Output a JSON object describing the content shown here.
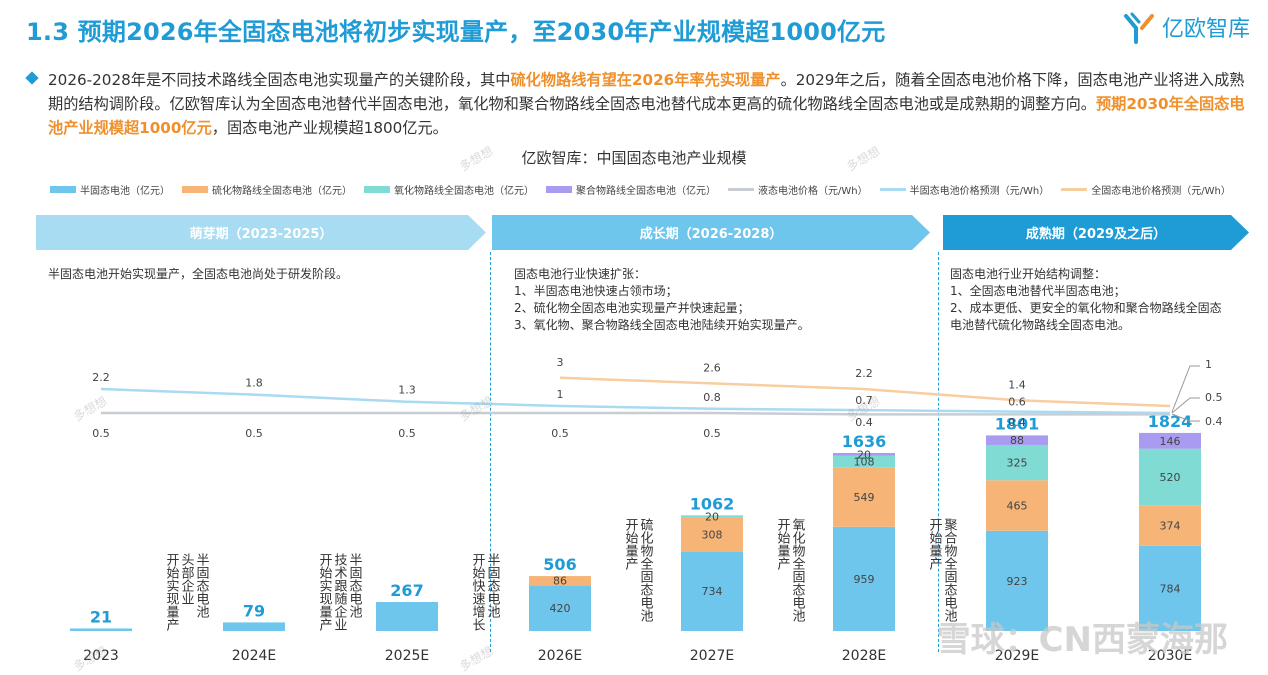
{
  "title": "1.3 预期2026年全固态电池将初步实现量产，至2030年产业规模超1000亿元",
  "logo": {
    "text": "亿欧智库",
    "icon": "yiou-logo-icon"
  },
  "intro": {
    "p1": "2026-2028年是不同技术路线全固态电池实现量产的关键阶段，其中",
    "h1": "硫化物路线有望在2026年率先实现量产",
    "p2": "。2029年之后，随着全固态电池价格下降，固态电池产业将进入成熟期的结构调阶段。亿欧智库认为全固态电池替代半固态电池，氧化物和聚合物路线全固态电池替代成本更高的硫化物路线全固态电池或是成熟期的调整方向。",
    "h2": "预期2030年全固态电池产业规模超1000亿元",
    "p3": "，固态电池产业规模超1800亿元。"
  },
  "phases": [
    {
      "label": "萌芽期（2023-2025）",
      "desc": [
        "半固态电池开始实现量产，全固态电池尚处于研发阶段。"
      ]
    },
    {
      "label": "成长期（2026-2028）",
      "desc": [
        "固态电池行业快速扩张：",
        "1、半固态电池快速占领市场；",
        "2、硫化物全固态电池实现量产并快速起量；",
        "3、氧化物、聚合物路线全固态电池陆续开始实现量产。"
      ]
    },
    {
      "label": "成熟期（2029及之后）",
      "desc": [
        "固态电池行业开始结构调整：",
        "1、全固态电池替代半固态电池；",
        "2、成本更低、更安全的氧化物和聚合物路线全固态",
        "电池替代硫化物路线全固态电池。"
      ]
    }
  ],
  "annotations": [
    {
      "after": 0,
      "cols": [
        "半固态电池",
        "头部企业",
        "开始实现量产"
      ]
    },
    {
      "after": 1,
      "cols": [
        "半固态电池",
        "技术跟随企业",
        "开始实现量产"
      ]
    },
    {
      "after": 2,
      "cols": [
        "半固态电池",
        "开始快速增长"
      ]
    },
    {
      "after": 3,
      "cols": [
        "硫化物全固态电池",
        "开始量产"
      ]
    },
    {
      "after": 4,
      "cols": [
        "氧化物全固态电池",
        "开始量产"
      ]
    },
    {
      "after": 5,
      "cols": [
        "聚合物全固态电池",
        "开始量产"
      ]
    }
  ],
  "watermarks": {
    "duoxiang": "多想想",
    "xueqiu": "雪球：CN西蒙海那"
  },
  "colors": {
    "semi": "#6ec6ec",
    "sulfide": "#f6b577",
    "oxide": "#7fdbd3",
    "polymer": "#a99bf0",
    "liquid_price": "#c8cdd3",
    "semi_price": "#a9daf2",
    "all_price": "#f8cda0",
    "phase1": "#a8dcf3",
    "phase2": "#6ec6ec",
    "phase3": "#1f9bd6",
    "accent": "#1f9bd6",
    "total": "#1f9bd6"
  },
  "chart_data": {
    "type": "bar",
    "title": "亿欧智库：中国固态电池产业规模",
    "categories": [
      "2023",
      "2024E",
      "2025E",
      "2026E",
      "2027E",
      "2028E",
      "2029E",
      "2030E"
    ],
    "series": [
      {
        "name": "半固态电池（亿元）",
        "key": "semi",
        "values": [
          21,
          79,
          267,
          420,
          734,
          959,
          923,
          784
        ]
      },
      {
        "name": "硫化物路线全固态电池（亿元）",
        "key": "sulfide",
        "values": [
          0,
          0,
          0,
          86,
          308,
          549,
          465,
          374
        ]
      },
      {
        "name": "氧化物路线全固态电池（亿元）",
        "key": "oxide",
        "values": [
          0,
          0,
          0,
          0,
          20,
          108,
          325,
          520
        ]
      },
      {
        "name": "聚合物路线全固态电池（亿元）",
        "key": "polymer",
        "values": [
          0,
          0,
          0,
          0,
          0,
          20,
          88,
          146
        ]
      }
    ],
    "totals": [
      21,
      79,
      267,
      506,
      1062,
      1636,
      1801,
      1824
    ],
    "seg_labels": [
      [
        "",
        "",
        "",
        ""
      ],
      [
        "",
        "",
        "",
        ""
      ],
      [
        "",
        "",
        "",
        ""
      ],
      [
        "420",
        "86",
        "",
        ""
      ],
      [
        "734",
        "308",
        "20",
        ""
      ],
      [
        "959",
        "549",
        "108",
        "20"
      ],
      [
        "923",
        "465",
        "325",
        "88"
      ],
      [
        "784",
        "374",
        "520",
        "146"
      ]
    ],
    "price_series": [
      {
        "name": "液态电池价格（元/Wh）",
        "key": "liquid_price",
        "values": [
          0.5,
          0.5,
          0.5,
          0.5,
          0.5,
          0.4,
          0.4,
          0.4
        ],
        "labels": [
          "0.5",
          "0.5",
          "0.5",
          "0.5",
          "0.5",
          "0.4",
          "0.4",
          "0.4"
        ]
      },
      {
        "name": "半固态电池价格预测（元/Wh）",
        "key": "semi_price",
        "values": [
          2.2,
          1.8,
          1.3,
          1,
          0.8,
          0.7,
          0.6,
          0.5
        ],
        "labels": [
          "2.2",
          "1.8",
          "1.3",
          "1",
          "0.8",
          "0.7",
          "0.6",
          "0.5"
        ]
      },
      {
        "name": "全固态电池价格预测（元/Wh）",
        "key": "all_price",
        "values": [
          null,
          null,
          null,
          3,
          2.6,
          2.2,
          1.4,
          1
        ],
        "labels": [
          "",
          "",
          "",
          "3",
          "2.6",
          "2.2",
          "1.4",
          "1"
        ]
      }
    ],
    "grid": false,
    "legend": "top"
  }
}
